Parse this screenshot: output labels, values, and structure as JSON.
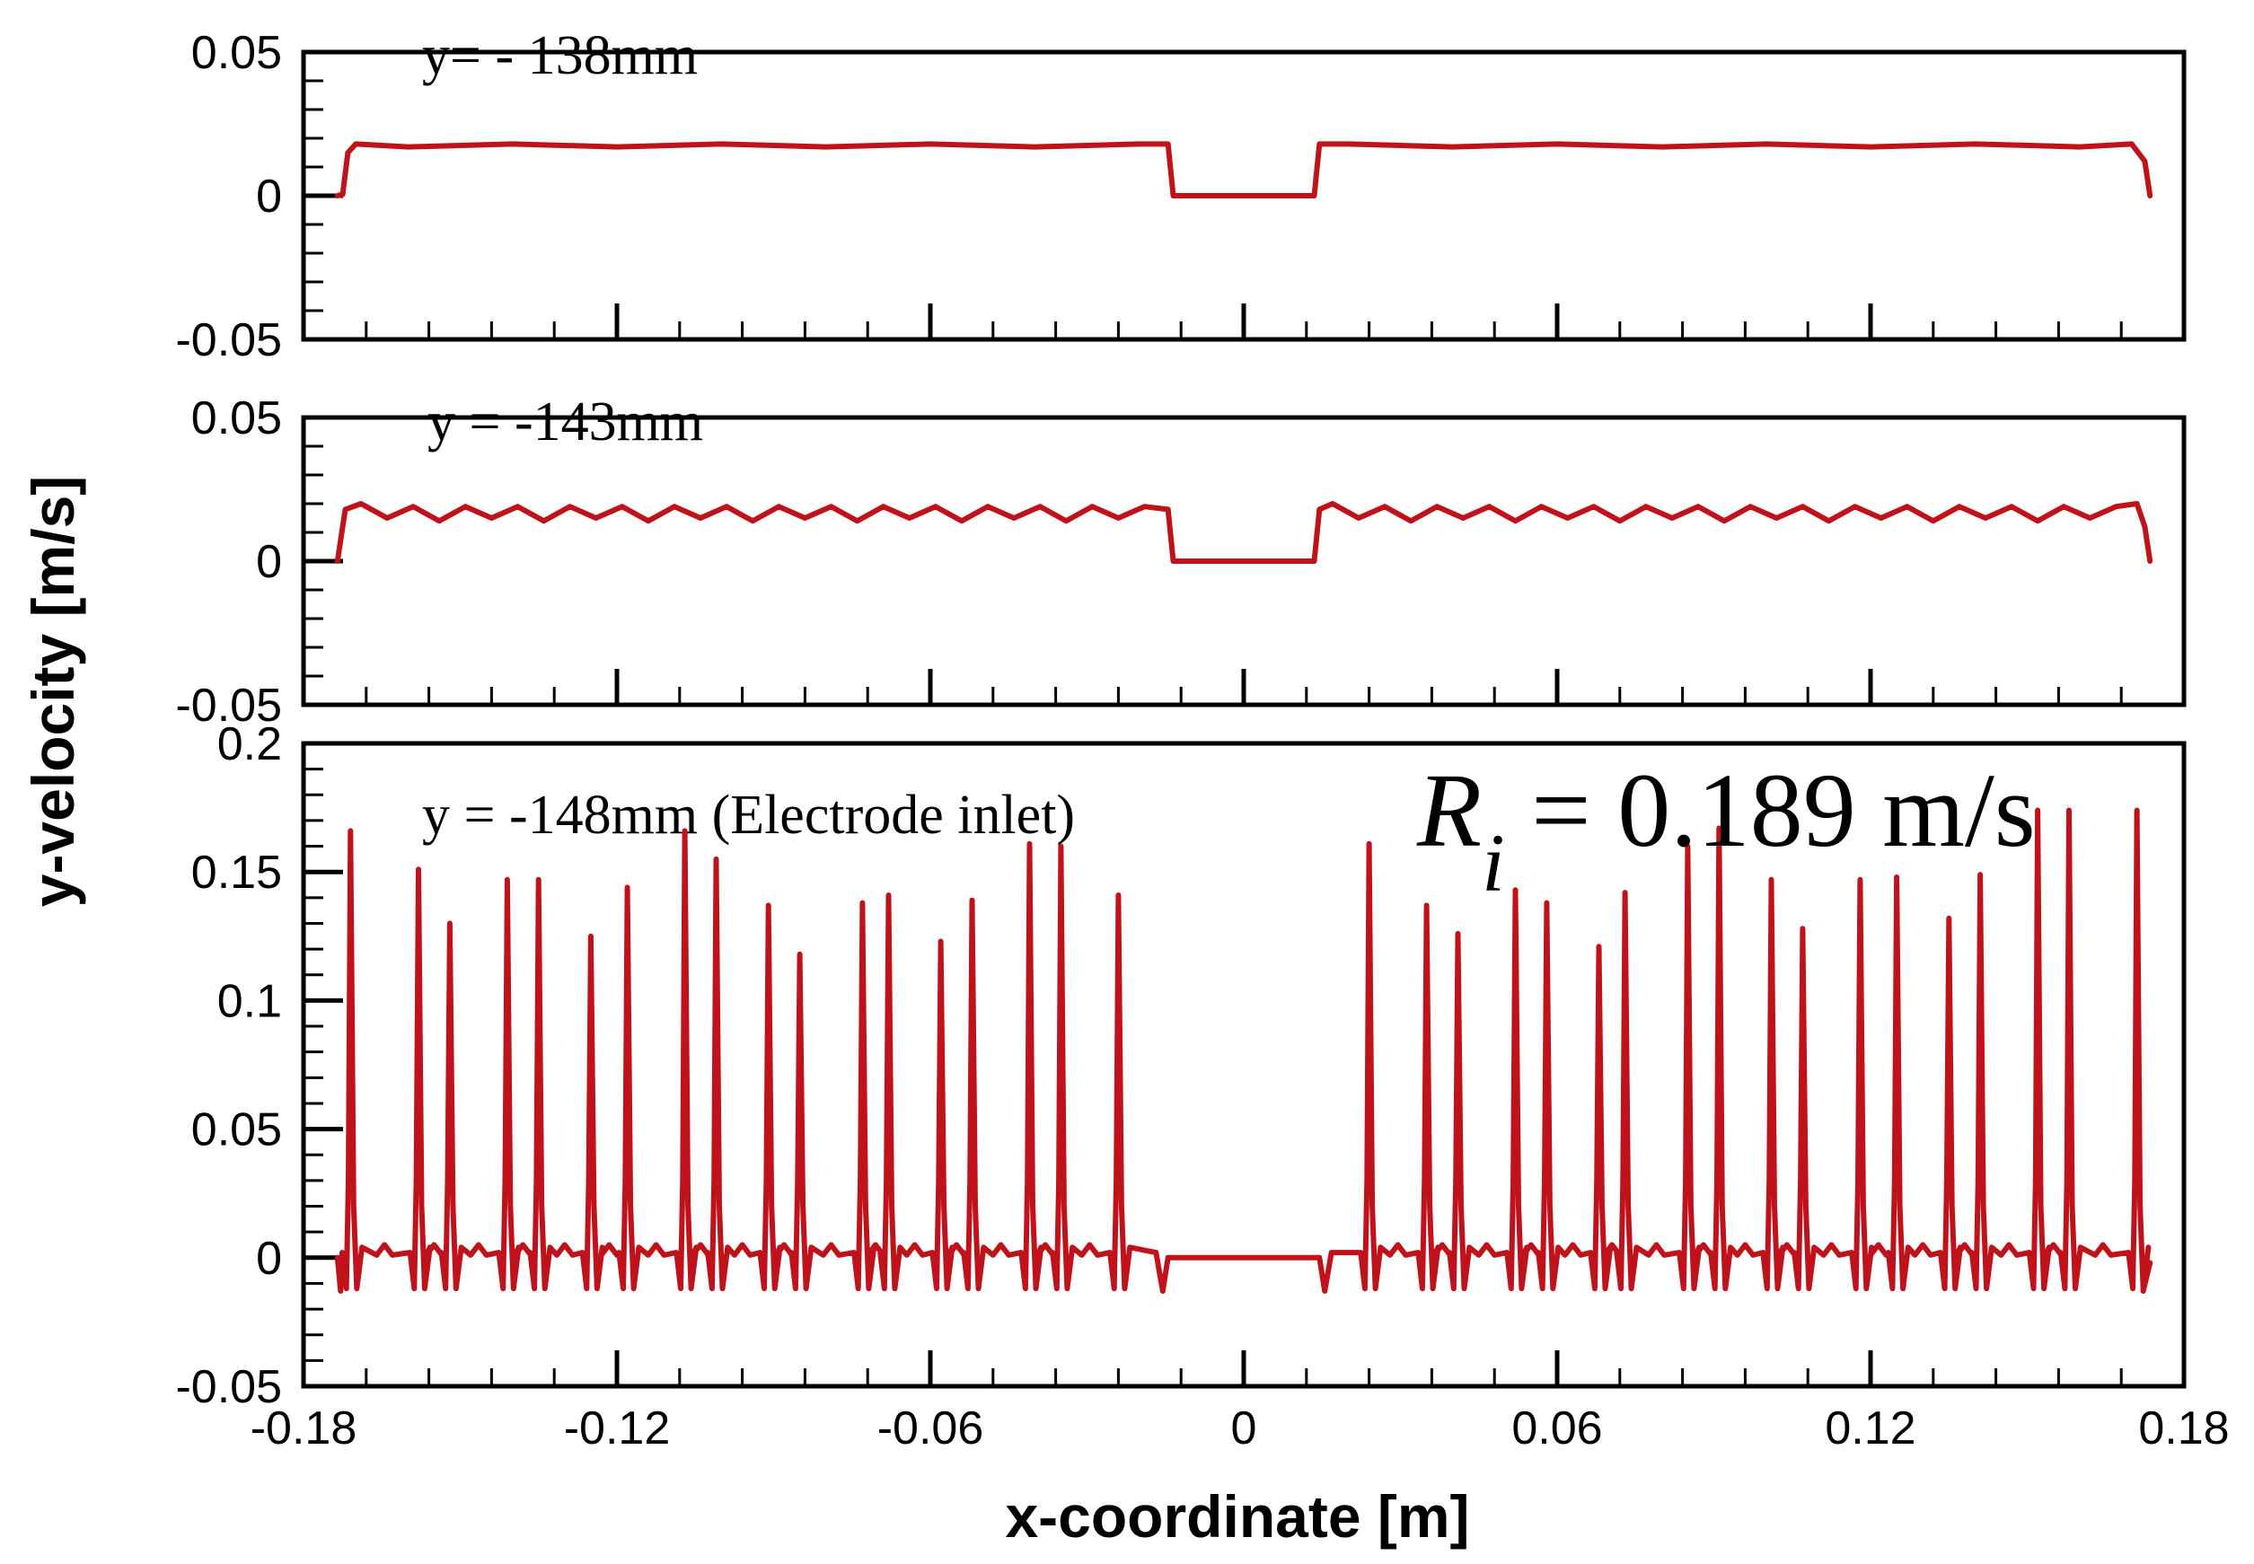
{
  "chart_data": [
    {
      "type": "line",
      "panel_label": "y= - 138mm",
      "xlabel": "x-coordinate [m]",
      "ylabel": "y-velocity [m/s]",
      "xlim": [
        -0.18,
        0.18
      ],
      "ylim": [
        -0.05,
        0.05
      ],
      "xticks": [
        "-0.18",
        "-0.12",
        "-0.06",
        "0",
        "0.06",
        "0.12",
        "0.18"
      ],
      "xtick_values": [
        -0.18,
        -0.12,
        -0.06,
        0,
        0.06,
        0.12,
        0.18
      ],
      "yticks": [
        "0.05",
        "0",
        "-0.05"
      ],
      "ytick_values": [
        0.05,
        0,
        -0.05
      ],
      "series": [
        {
          "name": "y-velocity",
          "color": "#c0121a",
          "x": [
            -0.1735,
            -0.1725,
            -0.1715,
            -0.17,
            -0.16,
            -0.14,
            -0.12,
            -0.1,
            -0.08,
            -0.06,
            -0.04,
            -0.02,
            -0.0145,
            -0.0135,
            0.0135,
            0.0145,
            0.02,
            0.04,
            0.06,
            0.08,
            0.1,
            0.12,
            0.14,
            0.16,
            0.17,
            0.1725,
            0.1735
          ],
          "y": [
            0.0,
            0.0005,
            0.015,
            0.018,
            0.017,
            0.018,
            0.017,
            0.018,
            0.017,
            0.018,
            0.017,
            0.018,
            0.018,
            0.0,
            0.0,
            0.018,
            0.018,
            0.017,
            0.018,
            0.017,
            0.018,
            0.017,
            0.018,
            0.017,
            0.018,
            0.012,
            0.0
          ]
        }
      ]
    },
    {
      "type": "line",
      "panel_label": "y = -143mm",
      "xlim": [
        -0.18,
        0.18
      ],
      "ylim": [
        -0.05,
        0.05
      ],
      "yticks": [
        "0.05",
        "0",
        "-0.05"
      ],
      "ytick_values": [
        0.05,
        0,
        -0.05
      ],
      "series": [
        {
          "name": "y-velocity",
          "color": "#c0121a",
          "x": [
            -0.1735,
            -0.172,
            -0.169,
            -0.164,
            -0.159,
            -0.154,
            -0.149,
            -0.144,
            -0.139,
            -0.134,
            -0.129,
            -0.124,
            -0.119,
            -0.114,
            -0.109,
            -0.104,
            -0.099,
            -0.094,
            -0.089,
            -0.084,
            -0.079,
            -0.074,
            -0.069,
            -0.064,
            -0.059,
            -0.054,
            -0.049,
            -0.044,
            -0.039,
            -0.034,
            -0.029,
            -0.024,
            -0.019,
            -0.0145,
            -0.0135,
            0.0135,
            0.0145,
            0.017,
            0.022,
            0.027,
            0.032,
            0.037,
            0.042,
            0.047,
            0.052,
            0.057,
            0.062,
            0.067,
            0.072,
            0.077,
            0.082,
            0.087,
            0.092,
            0.097,
            0.102,
            0.107,
            0.112,
            0.117,
            0.122,
            0.127,
            0.132,
            0.137,
            0.142,
            0.147,
            0.152,
            0.157,
            0.162,
            0.167,
            0.171,
            0.1725,
            0.1735
          ],
          "y": [
            0.0,
            0.018,
            0.02,
            0.015,
            0.019,
            0.014,
            0.019,
            0.015,
            0.019,
            0.014,
            0.019,
            0.015,
            0.019,
            0.014,
            0.019,
            0.015,
            0.019,
            0.014,
            0.019,
            0.015,
            0.019,
            0.014,
            0.019,
            0.015,
            0.019,
            0.014,
            0.019,
            0.015,
            0.019,
            0.014,
            0.019,
            0.015,
            0.019,
            0.018,
            0.0,
            0.0,
            0.018,
            0.02,
            0.015,
            0.019,
            0.014,
            0.019,
            0.015,
            0.019,
            0.014,
            0.019,
            0.015,
            0.019,
            0.014,
            0.019,
            0.015,
            0.019,
            0.014,
            0.019,
            0.015,
            0.019,
            0.014,
            0.019,
            0.015,
            0.019,
            0.014,
            0.019,
            0.015,
            0.019,
            0.014,
            0.019,
            0.015,
            0.019,
            0.02,
            0.012,
            0.0
          ]
        }
      ]
    },
    {
      "type": "line",
      "panel_label": "y = -148mm (Electrode inlet)",
      "annotation": {
        "symbol": "R",
        "subscript": "i",
        "text": " = 0.189 m/s"
      },
      "xlim": [
        -0.18,
        0.18
      ],
      "ylim": [
        -0.05,
        0.2
      ],
      "yticks": [
        "0.2",
        "0.15",
        "0.1",
        "0.05",
        "0",
        "-0.05"
      ],
      "ytick_values": [
        0.2,
        0.15,
        0.1,
        0.05,
        0,
        -0.05
      ],
      "series": [
        {
          "name": "y-velocity",
          "color": "#c0121a",
          "peak_x": [
            -0.171,
            -0.158,
            -0.152,
            -0.141,
            -0.135,
            -0.125,
            -0.118,
            -0.107,
            -0.101,
            -0.091,
            -0.085,
            -0.073,
            -0.068,
            -0.058,
            -0.052,
            -0.041,
            -0.035,
            -0.024,
            0.024,
            0.035,
            0.041,
            0.052,
            0.058,
            0.068,
            0.073,
            0.085,
            0.091,
            0.101,
            0.107,
            0.118,
            0.125,
            0.135,
            0.141,
            0.152,
            0.158,
            0.171
          ],
          "peak_y": [
            0.166,
            0.151,
            0.13,
            0.147,
            0.147,
            0.125,
            0.144,
            0.166,
            0.155,
            0.137,
            0.118,
            0.138,
            0.141,
            0.123,
            0.139,
            0.161,
            0.16,
            0.141,
            0.161,
            0.137,
            0.126,
            0.143,
            0.138,
            0.121,
            0.142,
            0.16,
            0.167,
            0.147,
            0.128,
            0.147,
            0.148,
            0.132,
            0.149,
            0.174,
            0.174,
            0.174
          ],
          "baseline": 0.002,
          "gap": [
            -0.0145,
            0.0145
          ]
        }
      ]
    }
  ]
}
